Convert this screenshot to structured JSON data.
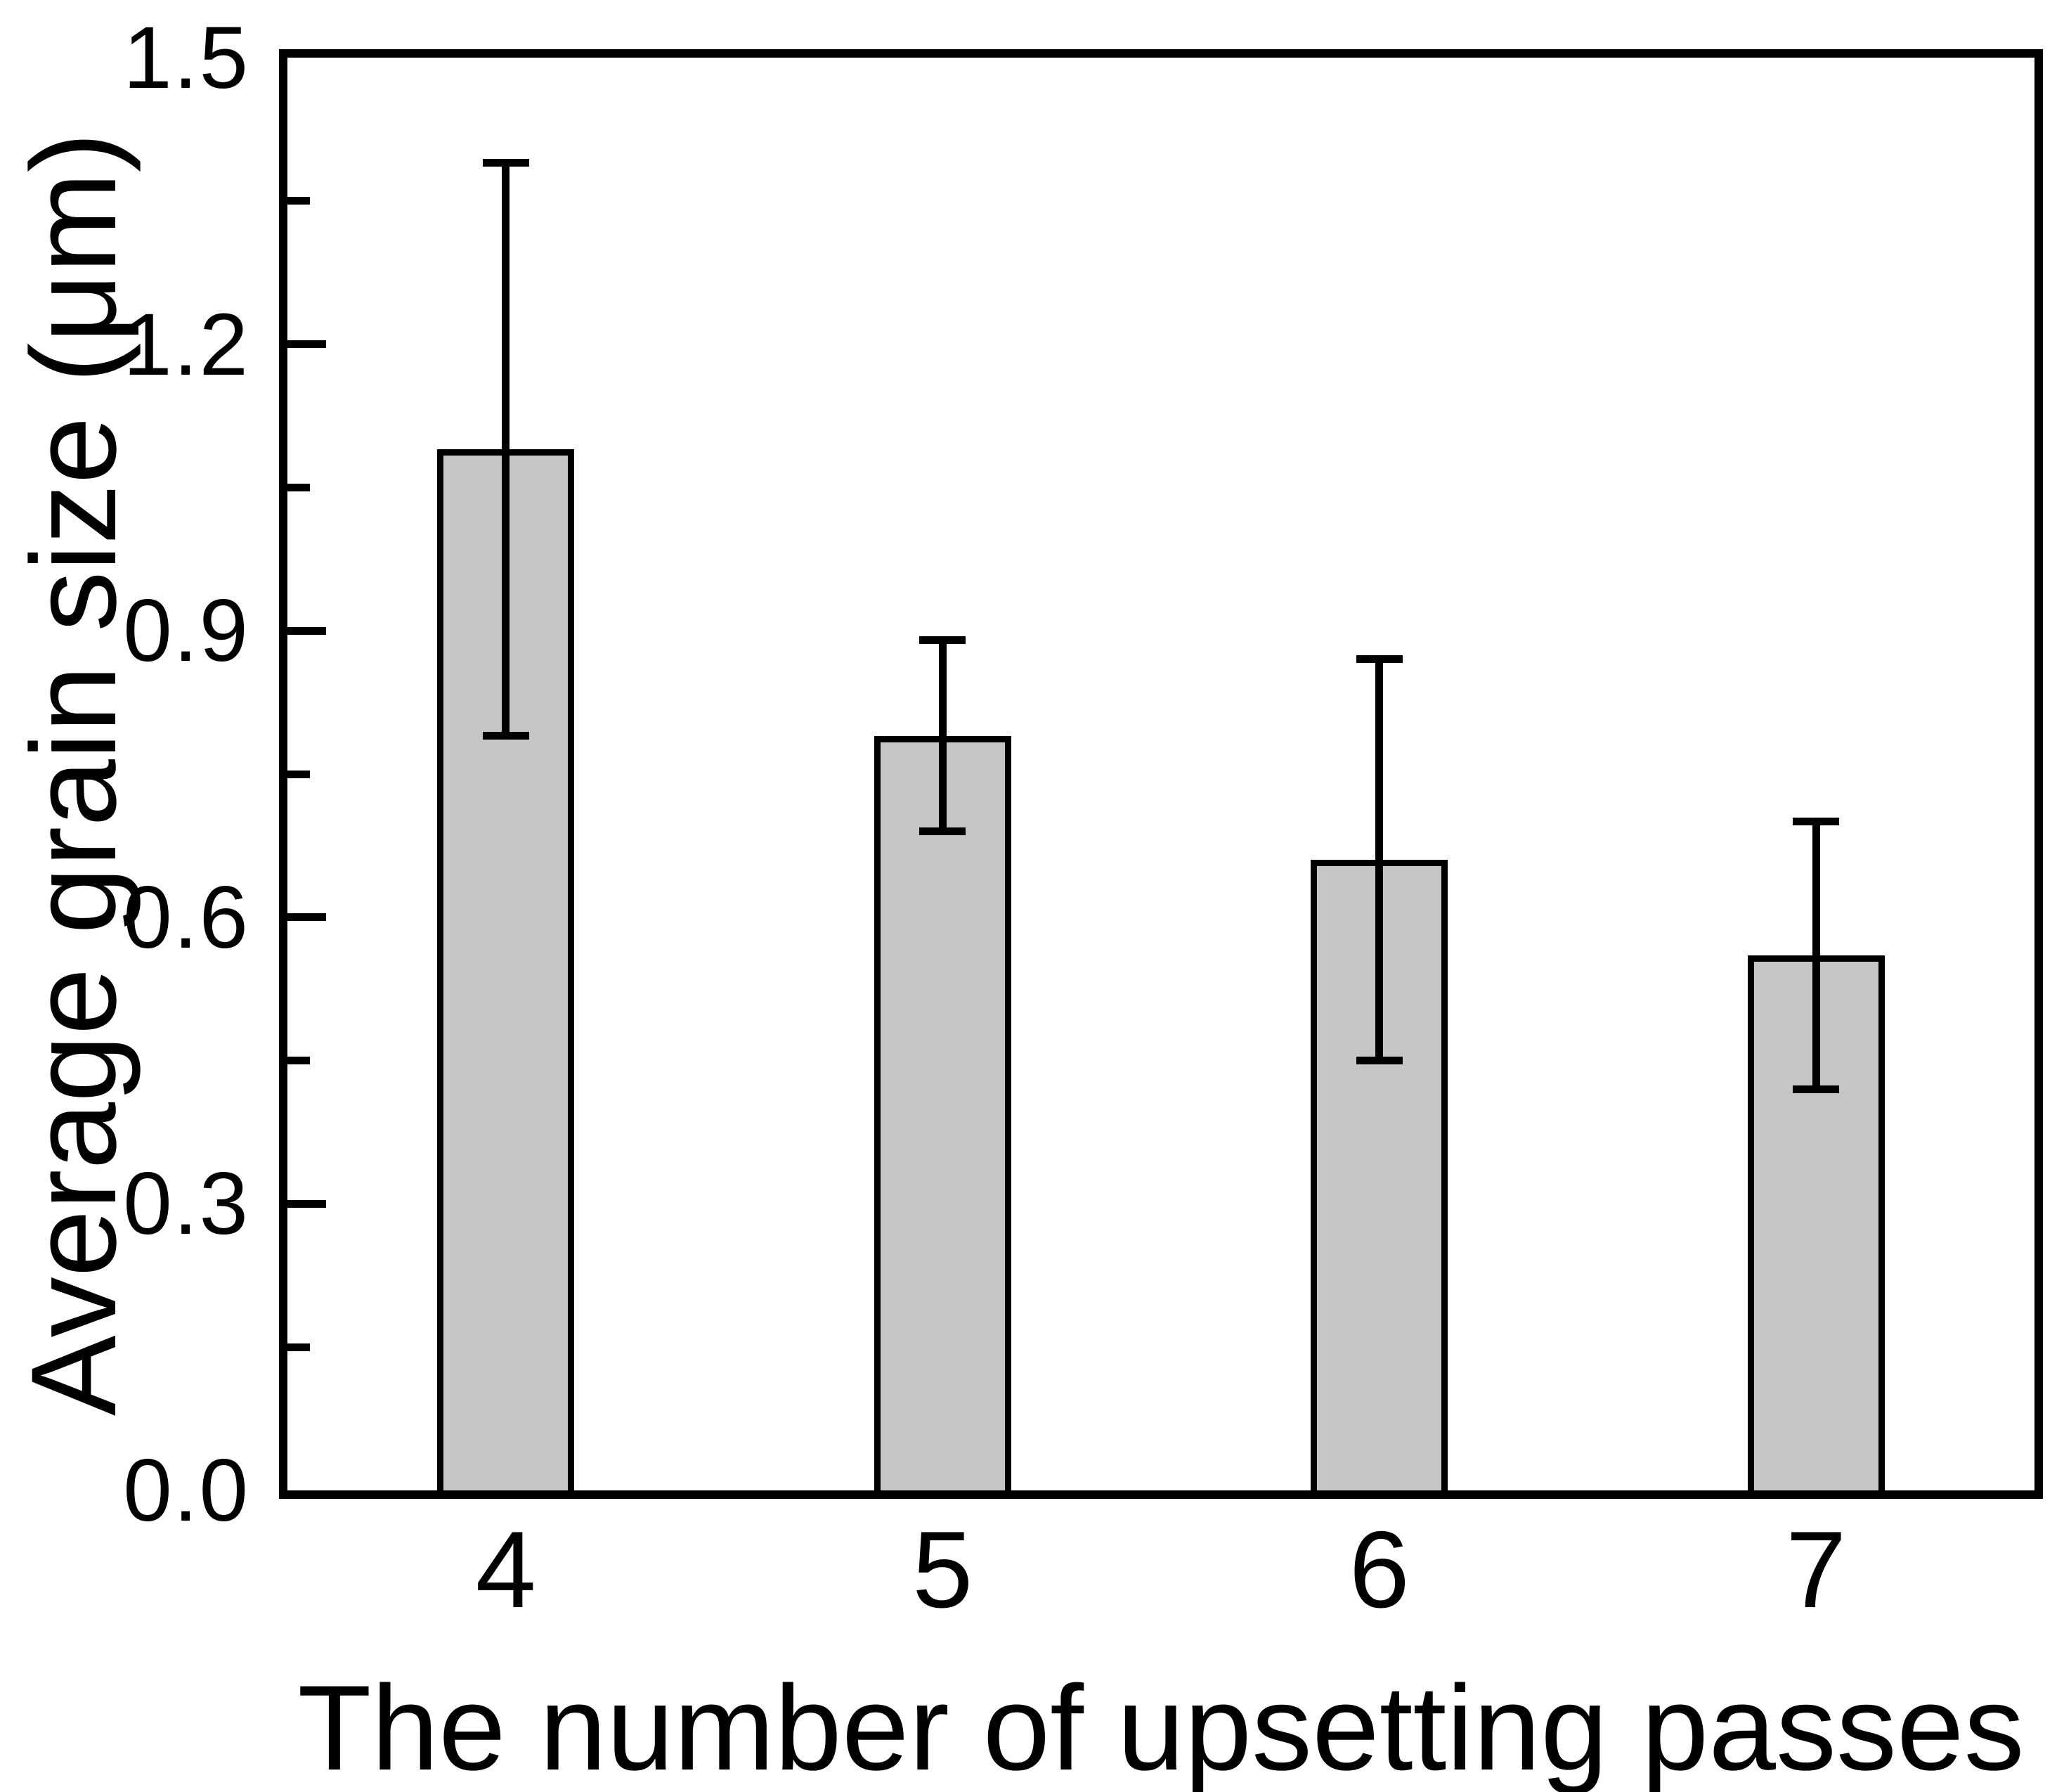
{
  "figure": {
    "background": "#ffffff",
    "text_color": "#000000"
  },
  "chart_data": {
    "type": "bar",
    "title": "",
    "xlabel": "The number of upsetting passes",
    "ylabel": "Average grain size (μm)",
    "categories": [
      "4",
      "5",
      "6",
      "7"
    ],
    "values": [
      1.09,
      0.79,
      0.66,
      0.56
    ],
    "error_upper": [
      1.39,
      0.89,
      0.87,
      0.7
    ],
    "error_lower": [
      0.79,
      0.69,
      0.45,
      0.42
    ],
    "ylim": [
      0.0,
      1.5
    ],
    "y_major_ticks": [
      0.0,
      0.3,
      0.6,
      0.9,
      1.2,
      1.5
    ],
    "y_tick_labels": [
      "0.0",
      "0.3",
      "0.6",
      "0.9",
      "1.2",
      "1.5"
    ],
    "y_minor_ticks": [
      0.15,
      0.45,
      0.75,
      1.05,
      1.35
    ],
    "bar_color": "#c6c6c6",
    "bar_border_color": "#000000",
    "error_bar_color": "#000000",
    "axis_color": "#000000",
    "grid": false,
    "legend": "none"
  }
}
